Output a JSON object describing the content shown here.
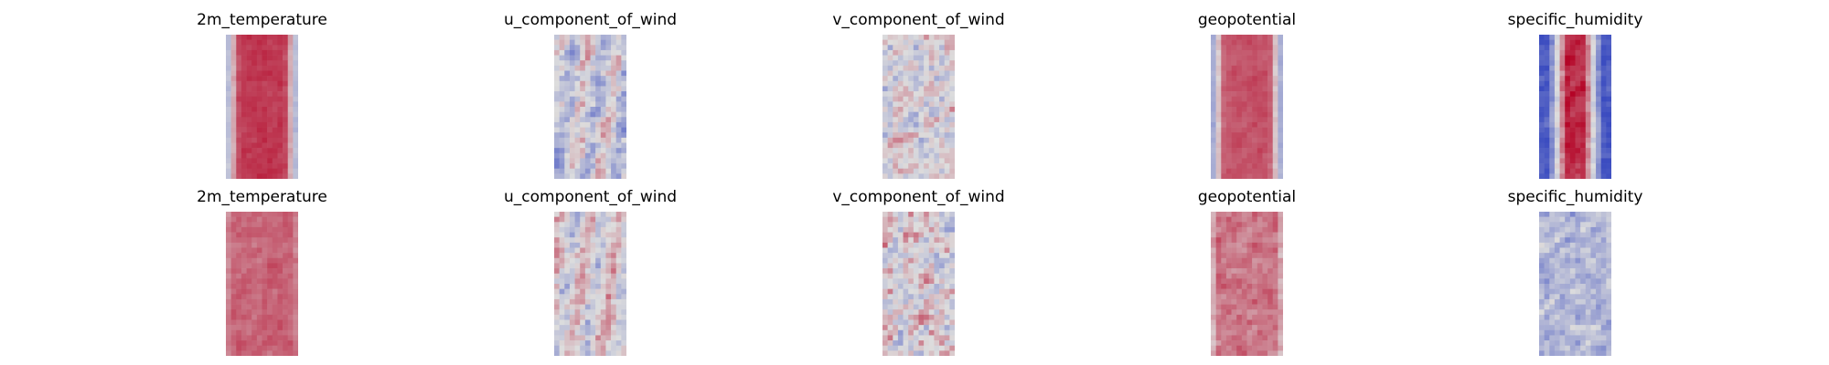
{
  "chart_data": {
    "type": "heatmap",
    "colormap": "coolwarm",
    "colors": {
      "cool": "#3b4cc0",
      "neutral": "#dddddd",
      "warm": "#b40426"
    },
    "axes_visible": false,
    "rows": [
      {
        "panels": [
          {
            "title": "2m_temperature",
            "pattern": "band",
            "center_level": 0.88,
            "edge_level": 0.28,
            "noise": 0.06
          },
          {
            "title": "u_component_of_wind",
            "pattern": "stripes",
            "center_level": 0.45,
            "edge_level": 0.5,
            "noise": 0.22
          },
          {
            "title": "v_component_of_wind",
            "pattern": "noise",
            "center_level": 0.5,
            "edge_level": 0.5,
            "noise": 0.26
          },
          {
            "title": "geopotential",
            "pattern": "band",
            "center_level": 0.82,
            "edge_level": 0.22,
            "noise": 0.06
          },
          {
            "title": "specific_humidity",
            "pattern": "narrow_band",
            "center_level": 0.92,
            "edge_level": 0.05,
            "noise": 0.12
          }
        ]
      },
      {
        "panels": [
          {
            "title": "2m_temperature",
            "pattern": "field",
            "center_level": 0.78,
            "edge_level": 0.72,
            "noise": 0.08
          },
          {
            "title": "u_component_of_wind",
            "pattern": "stripes",
            "center_level": 0.52,
            "edge_level": 0.5,
            "noise": 0.2
          },
          {
            "title": "v_component_of_wind",
            "pattern": "noise",
            "center_level": 0.52,
            "edge_level": 0.5,
            "noise": 0.3
          },
          {
            "title": "geopotential",
            "pattern": "field",
            "center_level": 0.74,
            "edge_level": 0.62,
            "noise": 0.12
          },
          {
            "title": "specific_humidity",
            "pattern": "noise",
            "center_level": 0.36,
            "edge_level": 0.38,
            "noise": 0.18
          }
        ]
      }
    ]
  }
}
